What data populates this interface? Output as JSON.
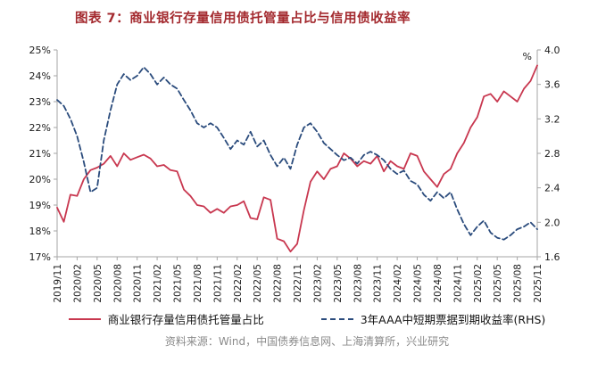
{
  "title": "图表 7：商业银行存量信用债托管量占比与信用债收益率",
  "source": "资料来源：Wind，中国债券信息网、上海清算所，兴业研究",
  "colors": {
    "title": "#A3292E",
    "line_ratio": "#C8374F",
    "line_yield": "#2A4B7C",
    "axis": "#a6a6a6",
    "text": "#1a1a1a",
    "source_text": "#8a8a8a"
  },
  "legend": [
    {
      "label": "商业银行存量信用债托管量占比",
      "style": "solid"
    },
    {
      "label": "3年AAA中短期票据到期收益率(RHS)",
      "style": "dashed"
    }
  ],
  "chart_data": {
    "type": "line",
    "title": "商业银行存量信用债托管量占比与信用债收益率",
    "x_tick_every": 3,
    "left_axis": {
      "min": 17,
      "max": 25,
      "step": 1,
      "suffix": "%"
    },
    "right_axis": {
      "min": 1.6,
      "max": 4.0,
      "step": 0.4,
      "unit": "%"
    },
    "x": [
      "2019/11",
      "2019/12",
      "2020/01",
      "2020/02",
      "2020/03",
      "2020/04",
      "2020/05",
      "2020/06",
      "2020/07",
      "2020/08",
      "2020/09",
      "2020/10",
      "2020/11",
      "2020/12",
      "2021/01",
      "2021/02",
      "2021/03",
      "2021/04",
      "2021/05",
      "2021/06",
      "2021/07",
      "2021/08",
      "2021/09",
      "2021/10",
      "2021/11",
      "2021/12",
      "2022/01",
      "2022/02",
      "2022/03",
      "2022/04",
      "2022/05",
      "2022/06",
      "2022/07",
      "2022/08",
      "2022/09",
      "2022/10",
      "2022/11",
      "2022/12",
      "2023/01",
      "2023/02",
      "2023/03",
      "2023/04",
      "2023/05",
      "2023/06",
      "2023/07",
      "2023/08",
      "2023/09",
      "2023/10",
      "2023/11",
      "2023/12",
      "2024/01",
      "2024/02",
      "2024/03",
      "2024/04",
      "2024/05",
      "2024/06",
      "2024/07",
      "2024/08",
      "2024/09",
      "2024/10",
      "2024/11",
      "2024/12",
      "2025/01",
      "2025/02",
      "2025/03",
      "2025/04",
      "2025/05",
      "2025/06",
      "2025/07",
      "2025/08",
      "2025/09",
      "2025/10",
      "2025/11"
    ],
    "series": [
      {
        "name": "商业银行存量信用债托管量占比",
        "axis": "left",
        "style": "solid",
        "color": "#C8374F",
        "values": [
          18.9,
          18.35,
          19.4,
          19.35,
          20.0,
          20.35,
          20.45,
          20.6,
          20.9,
          20.5,
          21.0,
          20.75,
          20.85,
          20.95,
          20.8,
          20.5,
          20.55,
          20.35,
          20.3,
          19.6,
          19.35,
          19.0,
          18.95,
          18.7,
          18.85,
          18.7,
          18.95,
          19.0,
          19.15,
          18.5,
          18.45,
          19.3,
          19.2,
          17.7,
          17.6,
          17.2,
          17.5,
          18.8,
          19.9,
          20.3,
          20.0,
          20.4,
          20.5,
          21.0,
          20.8,
          20.5,
          20.7,
          20.6,
          20.9,
          20.3,
          20.7,
          20.5,
          20.4,
          21.0,
          20.9,
          20.3,
          20.0,
          19.7,
          20.2,
          20.4,
          21.0,
          21.4,
          22.0,
          22.4,
          23.2,
          23.3,
          23.0,
          23.4,
          23.2,
          23.0,
          23.5,
          23.8,
          24.4
        ]
      },
      {
        "name": "3年AAA中短期票据到期收益率(RHS)",
        "axis": "right",
        "style": "dashed",
        "color": "#2A4B7C",
        "values": [
          3.42,
          3.35,
          3.2,
          3.0,
          2.7,
          2.35,
          2.4,
          2.95,
          3.3,
          3.6,
          3.72,
          3.65,
          3.7,
          3.8,
          3.72,
          3.6,
          3.68,
          3.6,
          3.55,
          3.42,
          3.3,
          3.15,
          3.1,
          3.15,
          3.1,
          2.98,
          2.85,
          2.95,
          2.9,
          3.05,
          2.88,
          2.95,
          2.78,
          2.65,
          2.75,
          2.62,
          2.9,
          3.1,
          3.15,
          3.05,
          2.92,
          2.85,
          2.78,
          2.72,
          2.75,
          2.68,
          2.78,
          2.82,
          2.78,
          2.72,
          2.62,
          2.56,
          2.6,
          2.48,
          2.44,
          2.32,
          2.25,
          2.35,
          2.28,
          2.35,
          2.15,
          1.98,
          1.85,
          1.95,
          2.02,
          1.88,
          1.82,
          1.8,
          1.85,
          1.92,
          1.95,
          2.0,
          1.92
        ]
      }
    ]
  }
}
